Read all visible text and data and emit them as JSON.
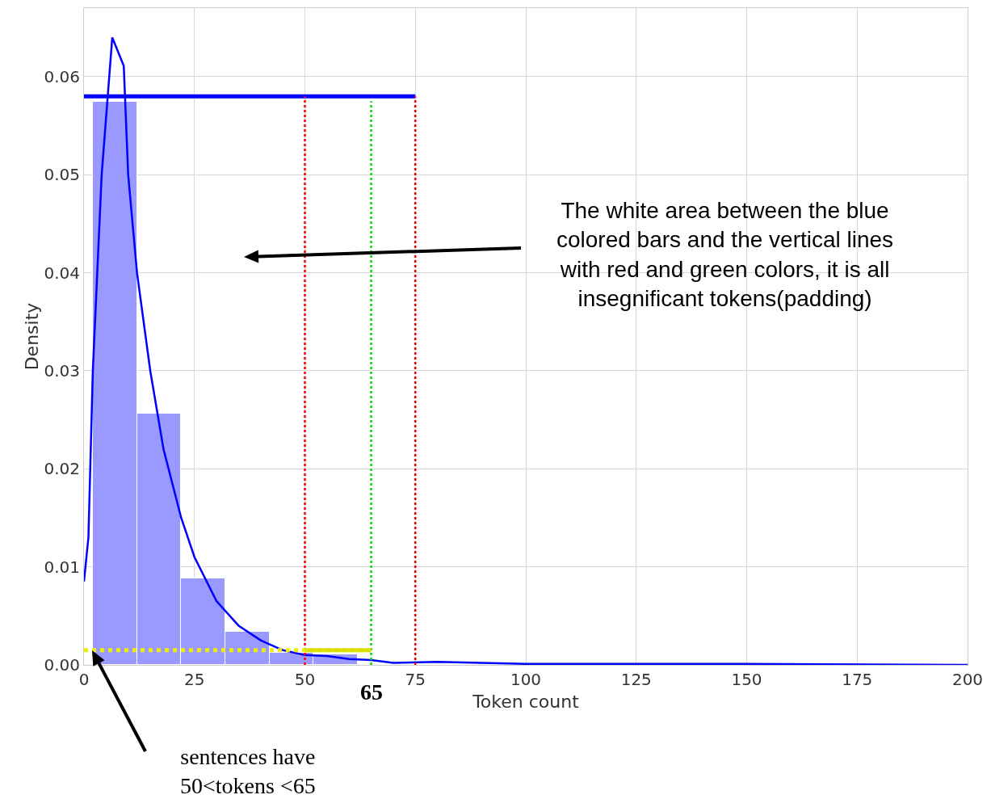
{
  "chart_data": {
    "type": "histogram",
    "xlabel": "Token count",
    "ylabel": "Density",
    "xlim": [
      0,
      200
    ],
    "ylim": [
      0,
      0.067
    ],
    "xticks": [
      0,
      25,
      50,
      75,
      100,
      125,
      150,
      175,
      200
    ],
    "yticks": [
      {
        "value": 0,
        "label": "0.00"
      },
      {
        "value": 0.01,
        "label": "0.01"
      },
      {
        "value": 0.02,
        "label": "0.02"
      },
      {
        "value": 0.03,
        "label": "0.03"
      },
      {
        "value": 0.04,
        "label": "0.04"
      },
      {
        "value": 0.05,
        "label": "0.05"
      },
      {
        "value": 0.06,
        "label": "0.06"
      }
    ],
    "grid": true,
    "series": [
      {
        "color": "#9999ff",
        "bins": [
          2,
          12,
          22,
          32,
          42,
          52,
          62
        ],
        "values": [
          0.0574,
          0.0256,
          0.0088,
          0.0034,
          0.0012,
          0.0011
        ]
      },
      {
        "type": "line",
        "color": "#0000ff",
        "line_style": "solid",
        "x": [
          0,
          1,
          2,
          4,
          6.4,
          9,
          10,
          12,
          15,
          18,
          22,
          25,
          30,
          35,
          40,
          45,
          50,
          55,
          60,
          65,
          70,
          80,
          90,
          100,
          150,
          200
        ],
        "values": [
          0.0085,
          0.013,
          0.03,
          0.05,
          0.064,
          0.0611,
          0.05,
          0.04,
          0.03,
          0.022,
          0.015,
          0.011,
          0.0065,
          0.004,
          0.0025,
          0.0015,
          0.001,
          0.0009,
          0.0006,
          0.0005,
          0.0002,
          0.0003,
          0.0002,
          0.0001,
          0.0001,
          0
        ]
      },
      {
        "type": "line",
        "color": "#0000ff",
        "line_style": "solid",
        "x": [
          0,
          75
        ],
        "values": [
          0.058,
          0.058
        ]
      },
      {
        "type": "line",
        "color": "#ff0000",
        "line_style": "dotted",
        "x": [
          50,
          50
        ],
        "values": [
          0,
          0.058
        ]
      },
      {
        "type": "line",
        "color": "#ff0000",
        "line_style": "dotted",
        "x": [
          75,
          75
        ],
        "values": [
          0,
          0.058
        ]
      },
      {
        "type": "line",
        "color": "#00dd00",
        "line_style": "dotted",
        "x": [
          65,
          65
        ],
        "values": [
          0,
          0.0575
        ]
      },
      {
        "type": "line",
        "color": "#eeee00",
        "line_style": "dotted",
        "x": [
          0,
          65
        ],
        "values": [
          0.0015,
          0.0015
        ]
      },
      {
        "type": "line",
        "color": "#dddd00",
        "line_style": "solid",
        "x": [
          50,
          65
        ],
        "values": [
          0.0015,
          0.0015
        ]
      }
    ],
    "annotations": [
      {
        "text": "The white area between the blue\ncolored bars and the vertical lines\nwith red and green colors, it is all\ninsegnificant tokens(padding)"
      },
      {
        "text": "sentences have\n50<tokens <65"
      },
      {
        "text": "65",
        "x": 65,
        "y": 0
      }
    ]
  }
}
